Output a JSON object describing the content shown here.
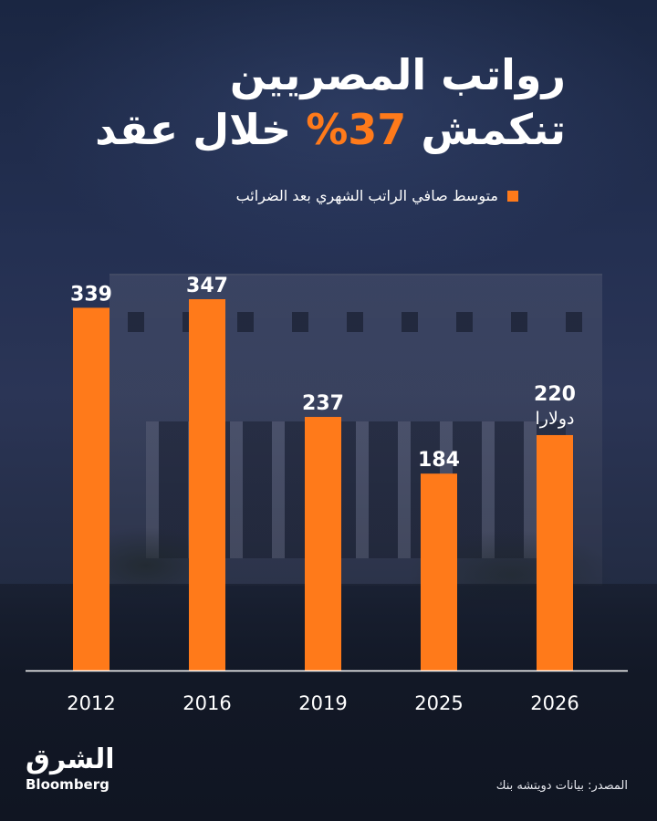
{
  "title": {
    "line1": "رواتب المصريين",
    "line2_prefix": "تنكمش ",
    "line2_highlight": "37%",
    "line2_suffix": " خلال عقد"
  },
  "legend": {
    "label": "متوسط صافي الراتب الشهري بعد الضرائب",
    "color": "#ff7a1a"
  },
  "chart_data": {
    "type": "bar",
    "categories": [
      "2012",
      "2016",
      "2019",
      "2025",
      "2026"
    ],
    "values": [
      339,
      347,
      237,
      184,
      220
    ],
    "value_labels": [
      "339",
      "347",
      "237",
      "184",
      "220"
    ],
    "unit_label": "دولارا",
    "unit_label_category": "2026",
    "series": [
      {
        "name": "متوسط صافي الراتب الشهري بعد الضرائب",
        "values": [
          339,
          347,
          237,
          184,
          220
        ]
      }
    ],
    "ylim": [
      0,
      347
    ],
    "grid": false,
    "legend_position": "top-right",
    "bar_color": "#ff7a1a"
  },
  "logo": {
    "arabic": "الشرق",
    "english": "Bloomberg"
  },
  "source": "المصدر: بيانات دويتشه بنك"
}
